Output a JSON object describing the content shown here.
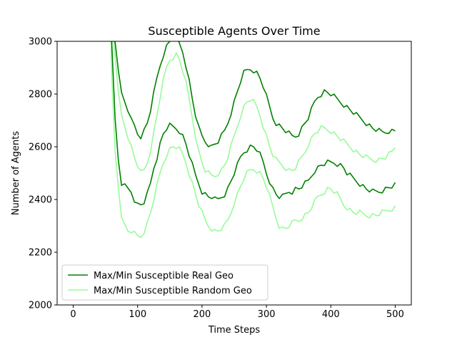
{
  "chart_data": {
    "type": "line",
    "title": "Susceptible Agents Over Time",
    "xlabel": "Time Steps",
    "ylabel": "Number of Agents",
    "xlim": [
      -25,
      525
    ],
    "ylim": [
      2000,
      3000
    ],
    "xticks": [
      0,
      100,
      200,
      300,
      400,
      500
    ],
    "yticks": [
      2000,
      2200,
      2400,
      2600,
      2800,
      3000
    ],
    "grid": false,
    "legend_position": "lower-left",
    "legend": [
      {
        "label": "Max/Min Susceptible Real Geo",
        "color": "#008000"
      },
      {
        "label": "Max/Min Susceptible Random Geo",
        "color": "#98fb98"
      }
    ],
    "x": [
      55,
      60,
      65,
      70,
      75,
      80,
      85,
      90,
      95,
      100,
      105,
      110,
      115,
      120,
      125,
      130,
      135,
      140,
      145,
      150,
      155,
      160,
      165,
      170,
      175,
      180,
      185,
      190,
      195,
      200,
      205,
      210,
      215,
      220,
      225,
      230,
      235,
      240,
      245,
      250,
      255,
      260,
      265,
      270,
      275,
      280,
      285,
      290,
      295,
      300,
      305,
      310,
      315,
      320,
      325,
      330,
      335,
      340,
      345,
      350,
      355,
      360,
      365,
      370,
      375,
      380,
      385,
      390,
      395,
      400,
      405,
      410,
      415,
      420,
      425,
      430,
      435,
      440,
      445,
      450,
      455,
      460,
      465,
      470,
      475,
      480,
      485,
      490,
      495,
      500
    ],
    "series": [
      {
        "color": "#008000",
        "values": [
          3400,
          3100,
          3000,
          2900,
          2800,
          2770,
          2740,
          2700,
          2680,
          2650,
          2640,
          2660,
          2690,
          2740,
          2800,
          2860,
          2910,
          2950,
          2980,
          3000,
          3010,
          3010,
          2990,
          2960,
          2910,
          2850,
          2780,
          2720,
          2670,
          2640,
          2620,
          2610,
          2600,
          2610,
          2620,
          2640,
          2660,
          2690,
          2730,
          2770,
          2810,
          2850,
          2880,
          2890,
          2895,
          2890,
          2880,
          2860,
          2830,
          2790,
          2750,
          2710,
          2690,
          2680,
          2670,
          2660,
          2650,
          2640,
          2640,
          2650,
          2670,
          2690,
          2710,
          2740,
          2770,
          2790,
          2800,
          2810,
          2805,
          2800,
          2790,
          2780,
          2770,
          2760,
          2750,
          2740,
          2730,
          2720,
          2710,
          2700,
          2690,
          2680,
          2670,
          2665,
          2660,
          2655,
          2655,
          2660,
          2660,
          2660
        ]
      },
      {
        "color": "#008000",
        "values": [
          3400,
          2990,
          2700,
          2550,
          2460,
          2450,
          2440,
          2430,
          2400,
          2380,
          2380,
          2390,
          2420,
          2460,
          2520,
          2560,
          2610,
          2650,
          2670,
          2680,
          2675,
          2670,
          2660,
          2640,
          2610,
          2570,
          2530,
          2490,
          2460,
          2430,
          2420,
          2410,
          2410,
          2400,
          2400,
          2410,
          2420,
          2440,
          2470,
          2500,
          2530,
          2560,
          2580,
          2590,
          2600,
          2600,
          2590,
          2570,
          2540,
          2500,
          2470,
          2440,
          2420,
          2410,
          2410,
          2420,
          2430,
          2430,
          2440,
          2440,
          2450,
          2460,
          2470,
          2490,
          2510,
          2520,
          2530,
          2535,
          2540,
          2540,
          2540,
          2535,
          2530,
          2520,
          2500,
          2490,
          2480,
          2470,
          2460,
          2450,
          2440,
          2435,
          2430,
          2430,
          2430,
          2435,
          2440,
          2445,
          2450,
          2455
        ]
      },
      {
        "color": "#98fb98",
        "values": [
          3400,
          3100,
          2950,
          2800,
          2720,
          2680,
          2640,
          2600,
          2560,
          2530,
          2500,
          2510,
          2540,
          2590,
          2650,
          2720,
          2790,
          2850,
          2900,
          2930,
          2940,
          2950,
          2930,
          2890,
          2840,
          2780,
          2710,
          2640,
          2580,
          2540,
          2510,
          2500,
          2490,
          2490,
          2500,
          2510,
          2530,
          2560,
          2600,
          2640,
          2680,
          2720,
          2750,
          2770,
          2780,
          2770,
          2750,
          2720,
          2680,
          2640,
          2600,
          2570,
          2550,
          2540,
          2530,
          2520,
          2510,
          2510,
          2520,
          2540,
          2560,
          2580,
          2610,
          2630,
          2650,
          2660,
          2670,
          2670,
          2665,
          2660,
          2650,
          2640,
          2630,
          2620,
          2610,
          2600,
          2590,
          2580,
          2570,
          2565,
          2560,
          2555,
          2550,
          2550,
          2550,
          2555,
          2560,
          2570,
          2580,
          2600
        ]
      },
      {
        "color": "#98fb98",
        "values": [
          3400,
          2850,
          2580,
          2450,
          2340,
          2300,
          2280,
          2280,
          2270,
          2260,
          2260,
          2280,
          2310,
          2350,
          2400,
          2450,
          2500,
          2540,
          2570,
          2590,
          2600,
          2600,
          2590,
          2570,
          2540,
          2500,
          2460,
          2420,
          2380,
          2350,
          2320,
          2300,
          2290,
          2280,
          2280,
          2290,
          2300,
          2320,
          2350,
          2390,
          2420,
          2450,
          2480,
          2500,
          2510,
          2515,
          2510,
          2500,
          2480,
          2450,
          2410,
          2370,
          2330,
          2300,
          2290,
          2290,
          2300,
          2310,
          2320,
          2320,
          2330,
          2340,
          2350,
          2370,
          2390,
          2410,
          2420,
          2430,
          2440,
          2440,
          2430,
          2420,
          2400,
          2380,
          2370,
          2360,
          2350,
          2350,
          2350,
          2345,
          2340,
          2340,
          2340,
          2340,
          2345,
          2350,
          2355,
          2360,
          2365,
          2370
        ]
      }
    ]
  }
}
